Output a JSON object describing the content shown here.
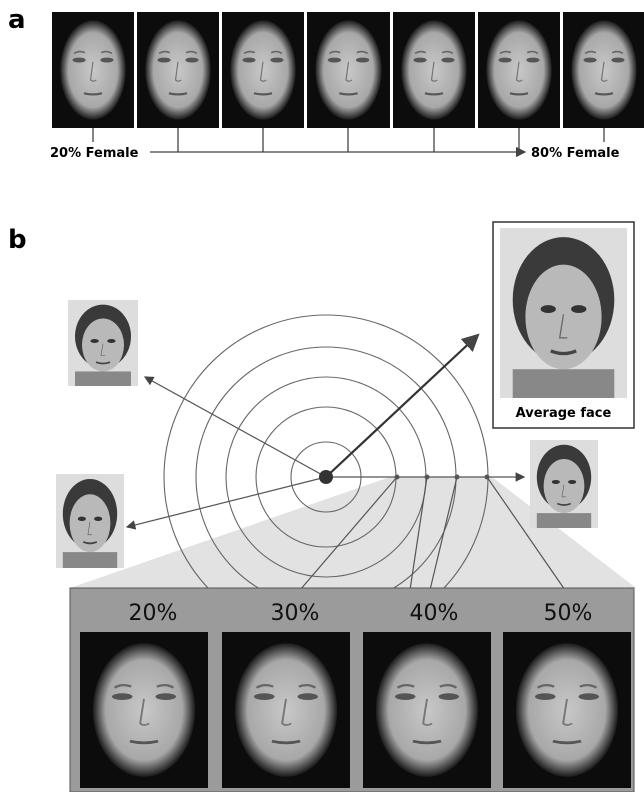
{
  "panel_a": {
    "label": "a",
    "start_label": "20% Female",
    "end_label": "80% Female"
  },
  "panel_b": {
    "label": "b",
    "average_label": "Average face",
    "levels": [
      "20%",
      "30%",
      "40%",
      "50%"
    ]
  }
}
